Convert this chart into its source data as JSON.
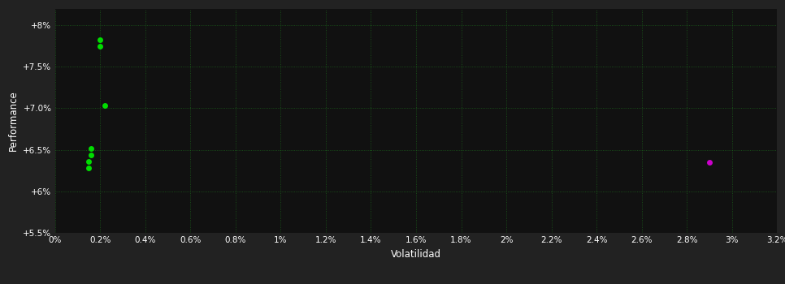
{
  "background_color": "#222222",
  "plot_bg_color": "#111111",
  "grid_color": "#1a5c1a",
  "text_color": "#ffffff",
  "xlabel": "Volatilidad",
  "ylabel": "Performance",
  "xlim": [
    0,
    0.032
  ],
  "ylim": [
    0.055,
    0.082
  ],
  "xtick_values": [
    0.0,
    0.002,
    0.004,
    0.006,
    0.008,
    0.01,
    0.012,
    0.014,
    0.016,
    0.018,
    0.02,
    0.022,
    0.024,
    0.026,
    0.028,
    0.03,
    0.032
  ],
  "ytick_values": [
    0.055,
    0.06,
    0.065,
    0.07,
    0.075,
    0.08
  ],
  "green_points": [
    [
      0.002,
      0.0782
    ],
    [
      0.002,
      0.0775
    ],
    [
      0.0022,
      0.0703
    ],
    [
      0.0016,
      0.0652
    ],
    [
      0.0016,
      0.0644
    ],
    [
      0.0015,
      0.0636
    ],
    [
      0.0015,
      0.0628
    ]
  ],
  "magenta_points": [
    [
      0.029,
      0.0635
    ]
  ],
  "green_color": "#00dd00",
  "magenta_color": "#cc00cc",
  "marker_size": 5
}
